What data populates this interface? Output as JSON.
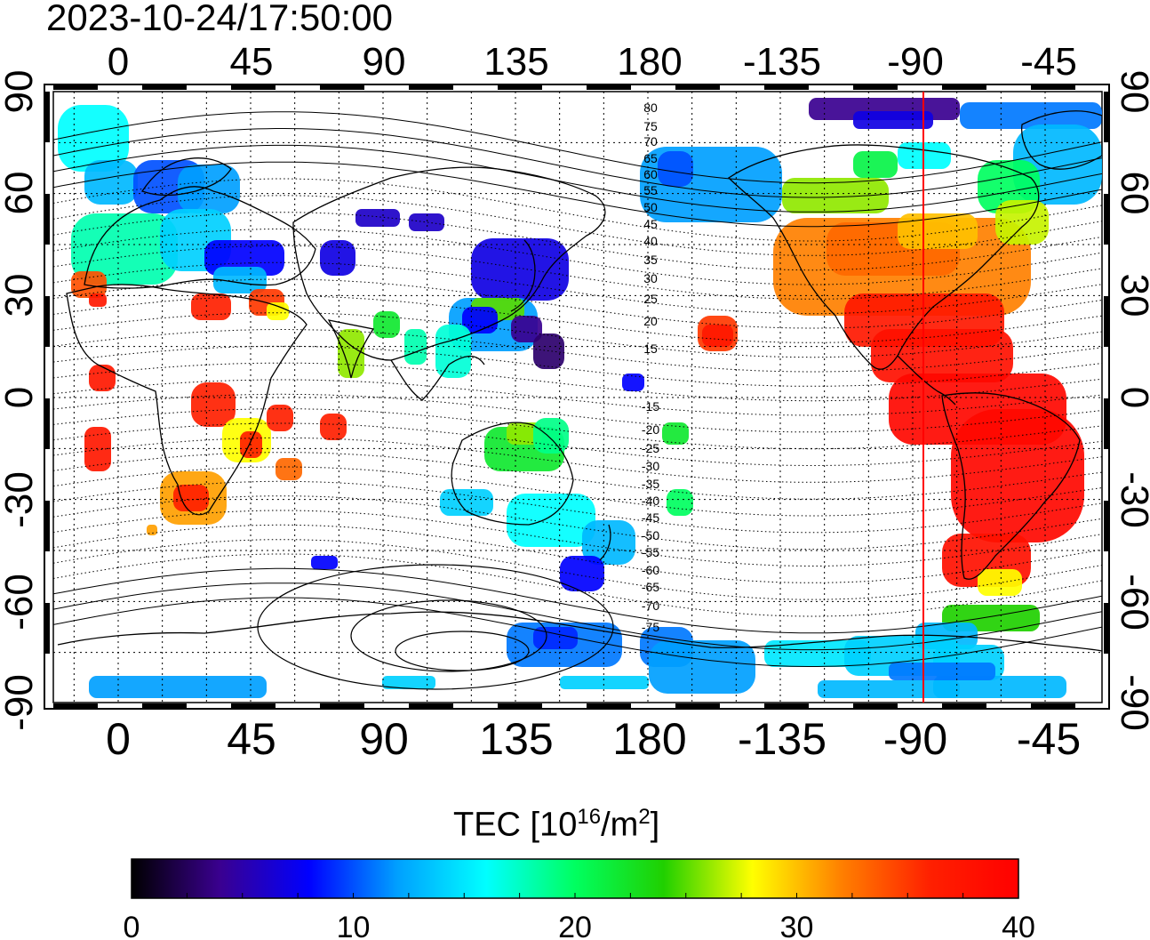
{
  "title": "2023-10-24/17:50:00",
  "colorbar": {
    "label_prefix": "TEC  [10",
    "label_exp1": "16",
    "label_mid": "/m",
    "label_exp2": "2",
    "label_suffix": "]",
    "min": 0,
    "max": 40,
    "ticks": [
      "0",
      "10",
      "20",
      "30",
      "40"
    ],
    "colors": [
      "#000000",
      "#3a0090",
      "#0000ff",
      "#00a0ff",
      "#00ffff",
      "#00ff60",
      "#20d000",
      "#ffff00",
      "#ff8000",
      "#ff2000",
      "#ff0000"
    ]
  },
  "axes": {
    "top_lon_ticks": [
      "0",
      "45",
      "90",
      "135",
      "180",
      "-135",
      "-90",
      "-45"
    ],
    "bottom_lon_ticks": [
      "0",
      "45",
      "90",
      "135",
      "180",
      "-135",
      "-90",
      "-45"
    ],
    "left_lat_ticks": [
      "90",
      "60",
      "30",
      "0",
      "-30",
      "-60",
      "-90"
    ],
    "right_lat_ticks": [
      "90",
      "60",
      "30",
      "0",
      "-30",
      "-60",
      "-90"
    ]
  },
  "magnetic_latitude_labels": [
    "80",
    "75",
    "70",
    "65",
    "60",
    "55",
    "50",
    "45",
    "40",
    "35",
    "30",
    "25",
    "20",
    "15",
    "-15",
    "-20",
    "-25",
    "-30",
    "-35",
    "-40",
    "-45",
    "-50",
    "-55",
    "-60",
    "-65",
    "-70",
    "-75"
  ],
  "marker_line": {
    "longitude": -88,
    "color": "#ff0000"
  }
}
